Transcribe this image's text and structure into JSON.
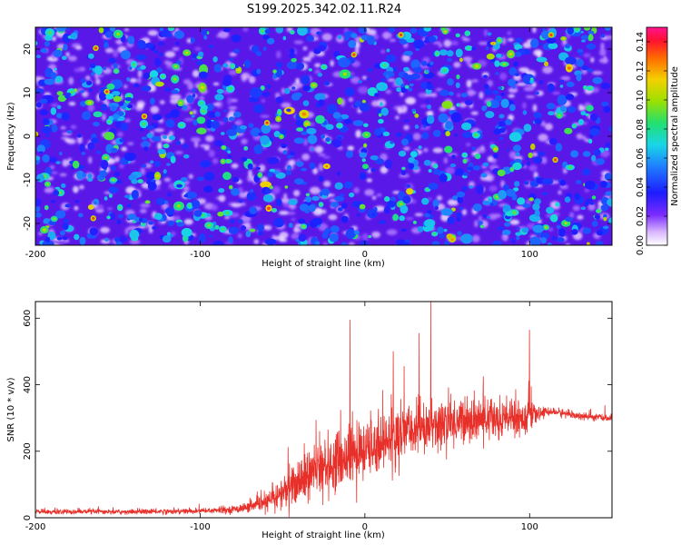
{
  "title": "S199.2025.342.02.11.R24",
  "chart_data": [
    {
      "type": "heatmap",
      "title": "S199.2025.342.02.11.R24",
      "xlabel": "Height of straight line (km)",
      "ylabel": "Frequency (Hz)",
      "xlim": [
        -200,
        150
      ],
      "ylim": [
        -25,
        25
      ],
      "xticks": [
        -200,
        -100,
        0,
        100
      ],
      "yticks": [
        -20,
        -10,
        0,
        10,
        20
      ],
      "colorbar": {
        "label": "Normalized spectral amplitude",
        "range": [
          0,
          0.15
        ],
        "ticks": [
          "0.00",
          "0.02",
          "0.04",
          "0.06",
          "0.08",
          "0.10",
          "0.12",
          "0.14"
        ]
      },
      "description_values": "random-like speckle of spectral amplitude, mostly 0.01-0.05 with sparse peaks up to ~0.14"
    },
    {
      "type": "line",
      "xlabel": "Height of straight line (km)",
      "ylabel": "SNR (10 * v/v)",
      "xlim": [
        -200,
        150
      ],
      "ylim": [
        0,
        650
      ],
      "xticks": [
        -200,
        -100,
        0,
        100
      ],
      "yticks": [
        0,
        200,
        400,
        600
      ],
      "color": "#e8302a",
      "series": [
        {
          "name": "SNR",
          "x": [
            -200,
            -150,
            -100,
            -80,
            -70,
            -60,
            -50,
            -40,
            -30,
            -20,
            -10,
            0,
            10,
            20,
            30,
            40,
            50,
            60,
            70,
            80,
            90,
            100,
            105,
            110,
            120,
            130,
            140,
            150
          ],
          "mean": [
            18,
            18,
            20,
            25,
            32,
            45,
            75,
            110,
            140,
            165,
            185,
            200,
            225,
            250,
            265,
            275,
            285,
            292,
            295,
            298,
            300,
            300,
            310,
            320,
            315,
            305,
            302,
            300
          ],
          "spread": [
            8,
            8,
            10,
            12,
            18,
            30,
            55,
            80,
            95,
            100,
            100,
            100,
            95,
            95,
            90,
            90,
            85,
            80,
            70,
            70,
            65,
            60,
            20,
            15,
            15,
            12,
            12,
            12
          ]
        }
      ],
      "spikes": [
        {
          "x": -9,
          "y": 595
        },
        {
          "x": 40,
          "y": 650
        },
        {
          "x": 100,
          "y": 565
        },
        {
          "x": 33,
          "y": 555
        },
        {
          "x": -5,
          "y": 45
        }
      ]
    }
  ]
}
